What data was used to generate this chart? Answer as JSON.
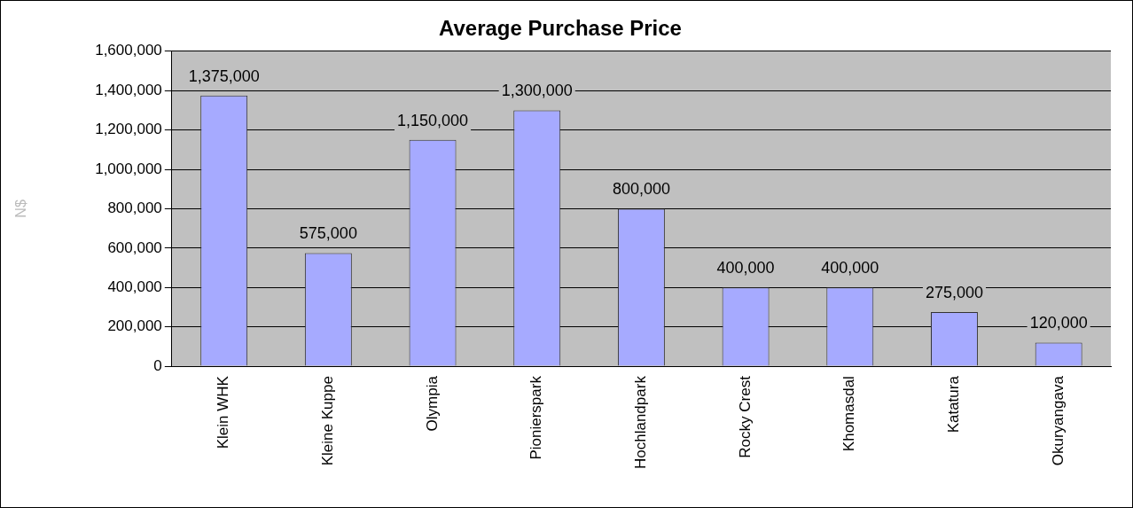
{
  "chart_data": {
    "type": "bar",
    "title": "Average Purchase Price",
    "ylabel": "N$",
    "categories": [
      "Klein WHK",
      "Kleine Kuppe",
      "Olympia",
      "Pionierspark",
      "Hochlandpark",
      "Rocky Crest",
      "Khomasdal",
      "Katatura",
      "Okuryangava"
    ],
    "values": [
      1375000,
      575000,
      1150000,
      1300000,
      800000,
      400000,
      400000,
      275000,
      120000
    ],
    "value_labels": [
      "1,375,000",
      "575,000",
      "1,150,000",
      "1,300,000",
      "800,000",
      "400,000",
      "400,000",
      "275,000",
      "120,000"
    ],
    "color": "#a6aaff",
    "ylim": [
      0,
      1600000
    ],
    "yticks": [
      0,
      {
        "value": 200000,
        "label": "200,000"
      },
      {
        "value": 400000,
        "label": "400,000"
      },
      {
        "value": 600000,
        "label": "600,000"
      },
      {
        "value": 800000,
        "label": "800,000"
      },
      {
        "value": 1000000,
        "label": "1,000,000"
      },
      {
        "value": 1200000,
        "label": "1,200,000"
      },
      {
        "value": 1400000,
        "label": "1,400,000"
      },
      {
        "value": 1600000,
        "label": "1,600,000"
      }
    ],
    "grid": "y",
    "legend": false
  }
}
